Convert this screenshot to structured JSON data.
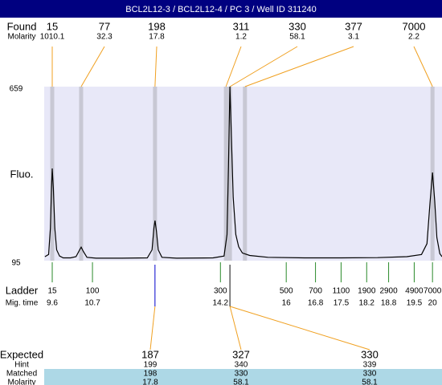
{
  "chart_data": {
    "type": "electropherogram",
    "title": "BCL2L12-3 / BCL2L12-4 / PC 3 / Well ID 311240",
    "y_label": "Fluo.",
    "ylim": [
      95,
      659
    ],
    "yticks": [
      95,
      659
    ],
    "xlim": [
      9.38,
      20.26
    ],
    "trace_color": "#000000",
    "trace": {
      "x": [
        9.4,
        9.5,
        9.55,
        9.58,
        9.6,
        9.63,
        9.67,
        9.72,
        9.8,
        9.9,
        10.1,
        10.25,
        10.35,
        10.39,
        10.45,
        10.55,
        10.8,
        11.5,
        12.2,
        12.33,
        12.38,
        12.41,
        12.45,
        12.5,
        12.6,
        13.0,
        14.0,
        14.3,
        14.38,
        14.42,
        14.46,
        14.5,
        14.55,
        14.62,
        14.7,
        14.8,
        15.0,
        15.5,
        16.5,
        17.5,
        18.5,
        19.3,
        19.7,
        19.85,
        19.93,
        20.0,
        20.06,
        20.12,
        20.2,
        20.26
      ],
      "values": [
        108,
        115,
        200,
        330,
        394,
        330,
        200,
        130,
        110,
        104,
        104,
        108,
        130,
        139,
        125,
        106,
        103,
        103,
        104,
        130,
        200,
        225,
        190,
        130,
        106,
        103,
        104,
        110,
        180,
        400,
        659,
        500,
        300,
        180,
        140,
        120,
        112,
        106,
        104,
        104,
        105,
        108,
        115,
        150,
        280,
        381,
        290,
        170,
        118,
        108
      ]
    },
    "found": {
      "label": "Found",
      "molarity_label": "Molarity",
      "sizes": [
        15,
        77,
        198,
        311,
        330,
        377,
        7000
      ],
      "molarity": [
        1010.1,
        32.3,
        17.8,
        1.2,
        58.1,
        3.1,
        2.2
      ],
      "mig_times": [
        9.6,
        10.39,
        12.41,
        14.35,
        14.46,
        14.87,
        20.0
      ]
    },
    "ladder": {
      "label": "Ladder",
      "mig_label": "Mig. time",
      "sizes": [
        15,
        100,
        300,
        500,
        700,
        1100,
        1900,
        2900,
        4900,
        7000
      ],
      "mig_times": [
        9.6,
        10.7,
        14.2,
        16,
        16.8,
        17.5,
        18.2,
        18.8,
        19.5,
        20
      ]
    },
    "expected_table": {
      "row_labels": [
        "Expected",
        "Hint",
        "Matched",
        "Molarity"
      ],
      "columns": [
        [
          187,
          199,
          198,
          17.8
        ],
        [
          327,
          340,
          330,
          58.1
        ],
        [
          330,
          339,
          330,
          58.1
        ]
      ]
    }
  }
}
